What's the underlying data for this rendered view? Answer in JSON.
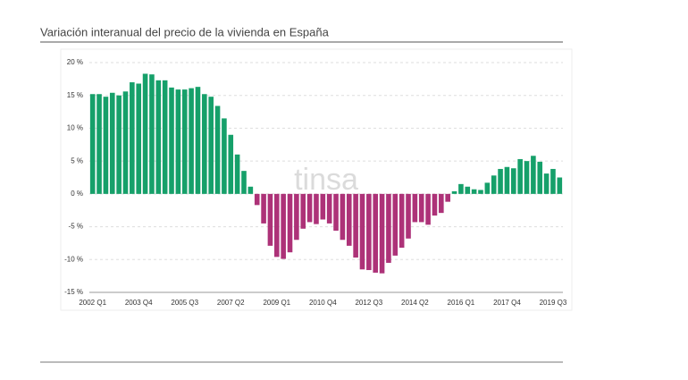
{
  "chart_data": {
    "type": "bar",
    "title": "Variación interanual del precio de la vivienda en España",
    "watermark": "tinsa",
    "categories": [
      "2002 Q1",
      null,
      null,
      null,
      null,
      null,
      null,
      "2003 Q4",
      null,
      null,
      null,
      null,
      null,
      null,
      "2005 Q3",
      null,
      null,
      null,
      null,
      null,
      null,
      "2007 Q2",
      null,
      null,
      null,
      null,
      null,
      null,
      "2009 Q1",
      null,
      null,
      null,
      null,
      null,
      null,
      "2010 Q4",
      null,
      null,
      null,
      null,
      null,
      null,
      "2012 Q3",
      null,
      null,
      null,
      null,
      null,
      null,
      "2014 Q2",
      null,
      null,
      null,
      null,
      null,
      null,
      "2016 Q1",
      null,
      null,
      null,
      null,
      null,
      null,
      "2017 Q4",
      null,
      null,
      null,
      null,
      null,
      null,
      "2019 Q3",
      null
    ],
    "values": [
      15.2,
      15.2,
      14.8,
      15.4,
      15.0,
      15.6,
      17.0,
      16.8,
      18.3,
      18.2,
      17.3,
      17.3,
      16.2,
      15.9,
      15.9,
      16.1,
      16.3,
      15.2,
      14.8,
      13.4,
      11.5,
      9.0,
      6.0,
      3.5,
      1.1,
      -1.7,
      -4.5,
      -7.9,
      -9.6,
      -9.9,
      -8.9,
      -7.0,
      -5.3,
      -4.3,
      -4.6,
      -3.9,
      -4.5,
      -5.6,
      -7.0,
      -7.9,
      -9.7,
      -11.5,
      -11.6,
      -12.0,
      -12.1,
      -10.5,
      -9.4,
      -8.2,
      -6.8,
      -4.3,
      -4.3,
      -4.7,
      -3.3,
      -2.9,
      -1.2,
      0.4,
      1.5,
      1.1,
      0.7,
      0.6,
      1.7,
      2.8,
      3.8,
      4.1,
      3.9,
      5.3,
      5.0,
      5.8,
      4.9,
      3.1,
      3.8,
      2.5
    ],
    "colors": {
      "positive": "#16a06a",
      "negative": "#ad3278"
    },
    "ylim": [
      -15,
      20
    ],
    "yticks": [
      {
        "value": -15,
        "label": "-15 %"
      },
      {
        "value": -10,
        "label": "-10 %"
      },
      {
        "value": -5,
        "label": "-5 %"
      },
      {
        "value": 0,
        "label": "0 %"
      },
      {
        "value": 5,
        "label": "5 %"
      },
      {
        "value": 10,
        "label": "10 %"
      },
      {
        "value": 15,
        "label": "15 %"
      },
      {
        "value": 20,
        "label": "20 %"
      }
    ],
    "grid": true
  }
}
